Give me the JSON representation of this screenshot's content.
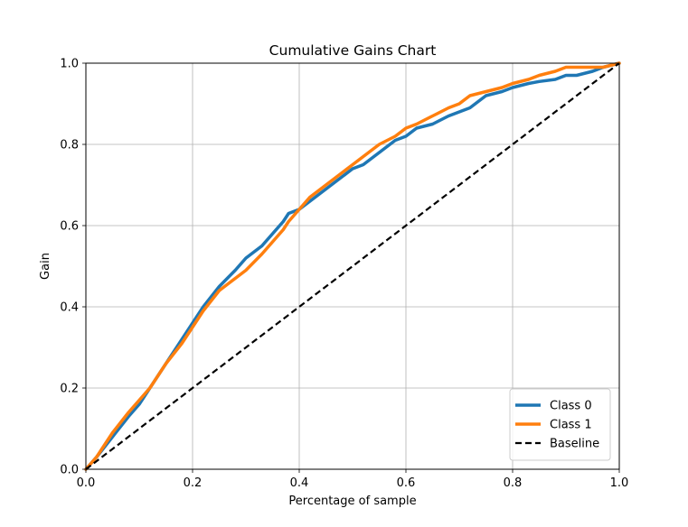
{
  "chart_data": {
    "type": "line",
    "title": "Cumulative Gains Chart",
    "xlabel": "Percentage of sample",
    "ylabel": "Gain",
    "xlim": [
      0.0,
      1.0
    ],
    "ylim": [
      0.0,
      1.0
    ],
    "xticks": [
      "0.0",
      "0.2",
      "0.4",
      "0.6",
      "0.8",
      "1.0"
    ],
    "yticks": [
      "0.0",
      "0.2",
      "0.4",
      "0.6",
      "0.8",
      "1.0"
    ],
    "grid": true,
    "legend_position": "lower-right",
    "series": [
      {
        "name": "Class 0",
        "color": "#1f77b4",
        "style": "solid",
        "x": [
          0.0,
          0.02,
          0.05,
          0.08,
          0.1,
          0.12,
          0.15,
          0.18,
          0.2,
          0.22,
          0.25,
          0.28,
          0.3,
          0.33,
          0.35,
          0.37,
          0.38,
          0.4,
          0.42,
          0.45,
          0.48,
          0.5,
          0.52,
          0.55,
          0.58,
          0.6,
          0.62,
          0.65,
          0.68,
          0.7,
          0.72,
          0.75,
          0.78,
          0.8,
          0.83,
          0.85,
          0.88,
          0.9,
          0.92,
          0.95,
          0.97,
          1.0
        ],
        "y": [
          0.0,
          0.03,
          0.08,
          0.13,
          0.16,
          0.2,
          0.26,
          0.32,
          0.36,
          0.4,
          0.45,
          0.49,
          0.52,
          0.55,
          0.58,
          0.61,
          0.63,
          0.64,
          0.66,
          0.69,
          0.72,
          0.74,
          0.75,
          0.78,
          0.81,
          0.82,
          0.84,
          0.85,
          0.87,
          0.88,
          0.89,
          0.92,
          0.93,
          0.94,
          0.95,
          0.955,
          0.96,
          0.97,
          0.97,
          0.98,
          0.99,
          1.0
        ]
      },
      {
        "name": "Class 1",
        "color": "#ff7f0e",
        "style": "solid",
        "x": [
          0.0,
          0.02,
          0.05,
          0.08,
          0.1,
          0.12,
          0.15,
          0.18,
          0.2,
          0.22,
          0.25,
          0.28,
          0.3,
          0.33,
          0.35,
          0.37,
          0.38,
          0.4,
          0.42,
          0.45,
          0.48,
          0.5,
          0.52,
          0.55,
          0.58,
          0.6,
          0.62,
          0.65,
          0.68,
          0.7,
          0.72,
          0.75,
          0.78,
          0.8,
          0.83,
          0.85,
          0.88,
          0.9,
          0.92,
          0.95,
          0.97,
          1.0
        ],
        "y": [
          0.0,
          0.03,
          0.09,
          0.14,
          0.17,
          0.2,
          0.26,
          0.31,
          0.35,
          0.39,
          0.44,
          0.47,
          0.49,
          0.53,
          0.56,
          0.59,
          0.61,
          0.64,
          0.67,
          0.7,
          0.73,
          0.75,
          0.77,
          0.8,
          0.82,
          0.84,
          0.85,
          0.87,
          0.89,
          0.9,
          0.92,
          0.93,
          0.94,
          0.95,
          0.96,
          0.97,
          0.98,
          0.99,
          0.99,
          0.99,
          0.99,
          1.0
        ]
      },
      {
        "name": "Baseline",
        "color": "#000000",
        "style": "dashed",
        "x": [
          0.0,
          1.0
        ],
        "y": [
          0.0,
          1.0
        ]
      }
    ]
  }
}
